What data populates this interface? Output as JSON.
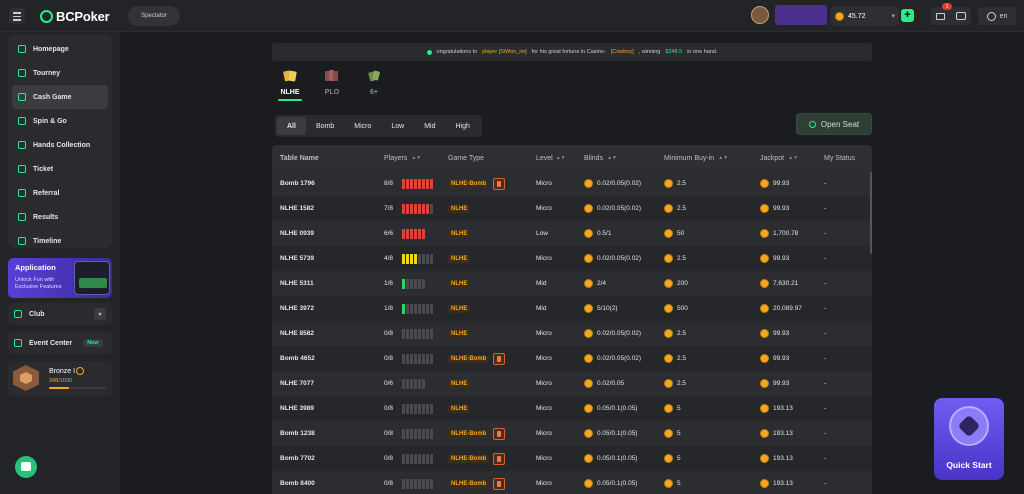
{
  "header": {
    "logo_text": "BCPoker",
    "spectator_label": "Spectator",
    "balance": "45.72",
    "mail_badge": "1",
    "lang": "en"
  },
  "sidebar": {
    "items": [
      {
        "label": "Homepage",
        "icon": "homepage-icon"
      },
      {
        "label": "Tourney",
        "icon": "trophy-icon"
      },
      {
        "label": "Cash Game",
        "icon": "cash-icon",
        "active": true
      },
      {
        "label": "Spin & Go",
        "icon": "spin-icon"
      },
      {
        "label": "Hands Collection",
        "icon": "hands-icon"
      },
      {
        "label": "Ticket",
        "icon": "ticket-icon"
      },
      {
        "label": "Referral",
        "icon": "referral-icon"
      },
      {
        "label": "Results",
        "icon": "results-icon"
      },
      {
        "label": "Timeline",
        "icon": "timeline-icon"
      }
    ],
    "app_card": {
      "title": "Application",
      "subtitle": "Unlock Fun with Exclusive Features"
    },
    "club_label": "Club",
    "event_label": "Event Center",
    "event_badge": "New",
    "rank": {
      "name": "Bronze I",
      "xp_current": "348",
      "xp_total": "/1000",
      "progress": 0.348
    }
  },
  "announcement": {
    "prefix": "ongratulations to",
    "player": "player [SiWoo_im]",
    "middle": "for his great fortune in Casino-",
    "game": "[Cowboy]",
    "suffix": ", winning",
    "amount": "$348.5",
    "end": "in one hand."
  },
  "game_tabs": [
    {
      "label": "NLHE",
      "active": true
    },
    {
      "label": "PLO",
      "active": false
    },
    {
      "label": "6+",
      "active": false
    }
  ],
  "filter_tabs": [
    "All",
    "Bomb",
    "Micro",
    "Low",
    "Mid",
    "High"
  ],
  "open_seat_label": "Open Seat",
  "columns": [
    "Table Name",
    "Players",
    "Game Type",
    "Level",
    "Blinds",
    "Minimum Buy-in",
    "Jackpot",
    "My Status"
  ],
  "colors": {
    "accent": "#24ee89",
    "bar_red": "#e0413b",
    "bar_yellow": "#f5d90a",
    "bar_green": "#32d46a",
    "bar_empty": "#4a4b50"
  },
  "rows": [
    {
      "name": "Bomb 1796",
      "players": "8/8",
      "seats": 8,
      "filled": 8,
      "type": "NLHE-Bomb",
      "bomb": true,
      "level": "Micro",
      "blinds": "0.02/0.05(0.02)",
      "buyin": "2.5",
      "jackpot": "99.93",
      "status": "-"
    },
    {
      "name": "NLHE 1582",
      "players": "7/8",
      "seats": 8,
      "filled": 7,
      "type": "NLHE",
      "bomb": false,
      "level": "Micro",
      "blinds": "0.02/0.05(0.02)",
      "buyin": "2.5",
      "jackpot": "99.93",
      "status": "-"
    },
    {
      "name": "NLHE 0939",
      "players": "6/6",
      "seats": 6,
      "filled": 6,
      "type": "NLHE",
      "bomb": false,
      "level": "Low",
      "blinds": "0.5/1",
      "buyin": "50",
      "jackpot": "1,700.78",
      "status": "-"
    },
    {
      "name": "NLHE 5739",
      "players": "4/8",
      "seats": 8,
      "filled": 4,
      "type": "NLHE",
      "bomb": false,
      "level": "Micro",
      "blinds": "0.02/0.05(0.02)",
      "buyin": "2.5",
      "jackpot": "99.93",
      "status": "-"
    },
    {
      "name": "NLHE 5311",
      "players": "1/6",
      "seats": 6,
      "filled": 1,
      "type": "NLHE",
      "bomb": false,
      "level": "Mid",
      "blinds": "2/4",
      "buyin": "200",
      "jackpot": "7,630.21",
      "status": "-"
    },
    {
      "name": "NLHE 3972",
      "players": "1/8",
      "seats": 8,
      "filled": 1,
      "type": "NLHE",
      "bomb": false,
      "level": "Mid",
      "blinds": "5/10(2)",
      "buyin": "500",
      "jackpot": "20,089.97",
      "status": "-"
    },
    {
      "name": "NLHE 8582",
      "players": "0/8",
      "seats": 8,
      "filled": 0,
      "type": "NLHE",
      "bomb": false,
      "level": "Micro",
      "blinds": "0.02/0.05(0.02)",
      "buyin": "2.5",
      "jackpot": "99.93",
      "status": "-"
    },
    {
      "name": "Bomb 4652",
      "players": "0/8",
      "seats": 8,
      "filled": 0,
      "type": "NLHE-Bomb",
      "bomb": true,
      "level": "Micro",
      "blinds": "0.02/0.05(0.02)",
      "buyin": "2.5",
      "jackpot": "99.93",
      "status": "-"
    },
    {
      "name": "NLHE 7077",
      "players": "0/6",
      "seats": 6,
      "filled": 0,
      "type": "NLHE",
      "bomb": false,
      "level": "Micro",
      "blinds": "0.02/0.05",
      "buyin": "2.5",
      "jackpot": "99.93",
      "status": "-"
    },
    {
      "name": "NLHE 3989",
      "players": "0/8",
      "seats": 8,
      "filled": 0,
      "type": "NLHE",
      "bomb": false,
      "level": "Micro",
      "blinds": "0.05/0.1(0.05)",
      "buyin": "5",
      "jackpot": "193.13",
      "status": "-"
    },
    {
      "name": "Bomb 1238",
      "players": "0/8",
      "seats": 8,
      "filled": 0,
      "type": "NLHE-Bomb",
      "bomb": true,
      "level": "Micro",
      "blinds": "0.05/0.1(0.05)",
      "buyin": "5",
      "jackpot": "193.13",
      "status": "-"
    },
    {
      "name": "Bomb 7702",
      "players": "0/8",
      "seats": 8,
      "filled": 0,
      "type": "NLHE-Bomb",
      "bomb": true,
      "level": "Micro",
      "blinds": "0.05/0.1(0.05)",
      "buyin": "5",
      "jackpot": "193.13",
      "status": "-"
    },
    {
      "name": "Bomb 8400",
      "players": "0/8",
      "seats": 8,
      "filled": 0,
      "type": "NLHE-Bomb",
      "bomb": true,
      "level": "Micro",
      "blinds": "0.05/0.1(0.05)",
      "buyin": "5",
      "jackpot": "193.13",
      "status": "-"
    }
  ],
  "quick_start_label": "Quick Start"
}
